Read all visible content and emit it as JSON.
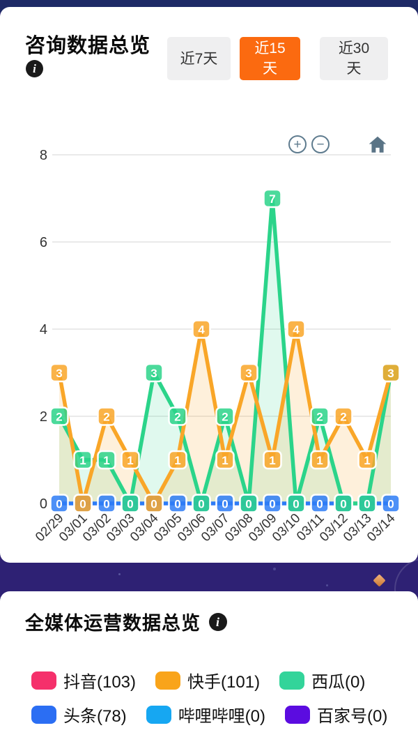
{
  "card1": {
    "title": "咨询数据总览",
    "tabs": [
      {
        "label": "近7天",
        "active": false
      },
      {
        "label": "近15天",
        "active": true
      },
      {
        "label": "近30天",
        "active": false
      }
    ],
    "toolbar": {
      "zoom_in": "+",
      "zoom_out": "−"
    }
  },
  "icons": {
    "info": "i"
  },
  "colors": {
    "accent_orange": "#fb6a10",
    "top_strip": "#1e2a66",
    "gap_band": "#2e2174",
    "tool_icon": "#5e7b8e"
  },
  "chart_data": {
    "type": "line",
    "title": "",
    "xlabel": "",
    "ylabel": "",
    "x": [
      "02/29",
      "03/01",
      "03/02",
      "03/03",
      "03/04",
      "03/05",
      "03/06",
      "03/07",
      "03/08",
      "03/09",
      "03/10",
      "03/11",
      "03/12",
      "03/13",
      "03/14"
    ],
    "ylim": [
      0,
      8
    ],
    "yticks": [
      0,
      2,
      4,
      6,
      8
    ],
    "grid": true,
    "legend_position": "none",
    "point_labels": true,
    "series": [
      {
        "name": "series-blue",
        "color": "#2e7cf6",
        "area": false,
        "fill": "none",
        "values": [
          0,
          0,
          0,
          0,
          0,
          0,
          0,
          0,
          0,
          0,
          0,
          0,
          0,
          0,
          0
        ]
      },
      {
        "name": "series-green",
        "color": "#2bd48a",
        "area": true,
        "fill": "rgba(44,213,138,0.15)",
        "values": [
          2,
          1,
          1,
          0,
          3,
          2,
          0,
          2,
          0,
          7,
          0,
          2,
          0,
          0,
          3
        ]
      },
      {
        "name": "series-orange",
        "color": "#f9a628",
        "area": true,
        "fill": "rgba(249,166,40,0.17)",
        "values": [
          3,
          0,
          2,
          1,
          0,
          1,
          4,
          1,
          3,
          1,
          4,
          1,
          2,
          1,
          3
        ]
      }
    ]
  },
  "card2": {
    "title": "全媒体运营数据总览",
    "legend": [
      {
        "label": "抖音(103)",
        "color": "#f5306b"
      },
      {
        "label": "快手(101)",
        "color": "#f9a41a"
      },
      {
        "label": "西瓜(0)",
        "color": "#33d49a"
      },
      {
        "label": "头条(78)",
        "color": "#2b6ef3"
      },
      {
        "label": "哔哩哔哩(0)",
        "color": "#16a7f2"
      },
      {
        "label": "百家号(0)",
        "color": "#5b0ce0"
      }
    ]
  }
}
